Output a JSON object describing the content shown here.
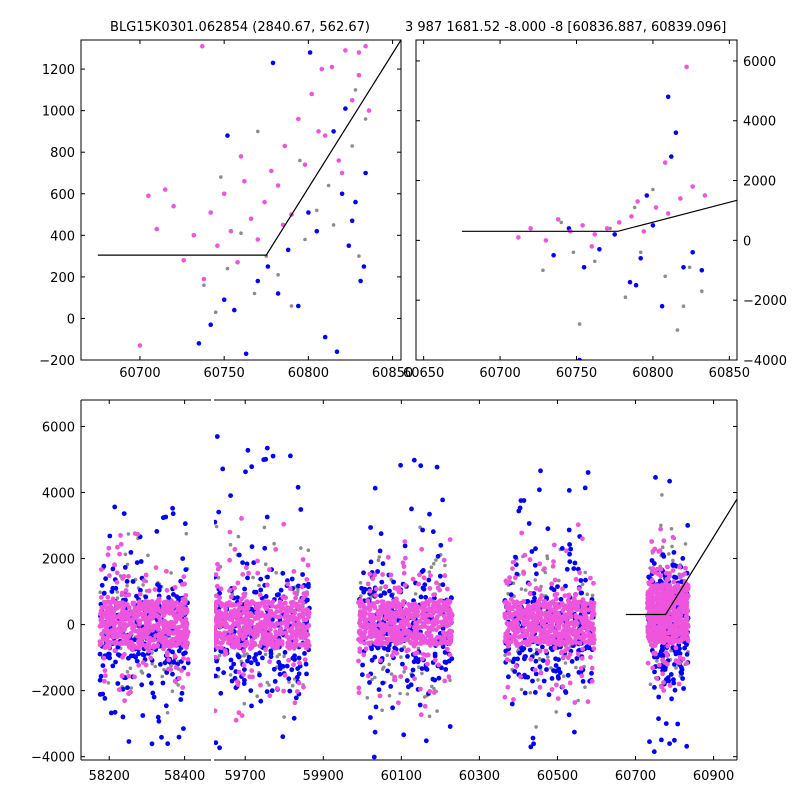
{
  "colors": {
    "series_gray": "#8c8c8c",
    "series_blue": "#0000ff",
    "series_pink": "#ee55dd",
    "model_line": "#000000",
    "frame": "#000000"
  },
  "chart_data": [
    {
      "type": "scatter",
      "title": "BLG15K0301.062854 (2840.67, 562.67)",
      "xlabel": "",
      "ylabel": "",
      "xlim": [
        60665,
        60855
      ],
      "ylim": [
        -200,
        1340
      ],
      "xticks": [
        60700,
        60750,
        60800,
        60850
      ],
      "xtick_labels": [
        "60700",
        "60750",
        "60800",
        "60850"
      ],
      "yticks": [
        -200,
        0,
        200,
        400,
        600,
        800,
        1000,
        1200
      ],
      "ytick_labels": [
        "−200",
        "0",
        "200",
        "400",
        "600",
        "800",
        "1000",
        "1200"
      ],
      "ytick_side": "left",
      "grid": false,
      "model_line": {
        "x": [
          60675,
          60775,
          60855
        ],
        "y": [
          305,
          305,
          1340
        ]
      },
      "series": [
        {
          "color": "gray",
          "x": [
            60738,
            60745,
            60752,
            60760,
            60768,
            60775,
            60782,
            60790,
            60798,
            60805,
            60812,
            60820,
            60826,
            60830,
            60834,
            60748,
            60770,
            60795,
            60815,
            60828
          ],
          "y": [
            160,
            30,
            240,
            410,
            120,
            300,
            210,
            60,
            380,
            520,
            640,
            700,
            830,
            300,
            960,
            680,
            900,
            760,
            450,
            1100
          ]
        },
        {
          "color": "blue",
          "x": [
            60735,
            60742,
            60750,
            60756,
            60763,
            60770,
            60776,
            60782,
            60788,
            60794,
            60800,
            60805,
            60810,
            60815,
            60820,
            60824,
            60828,
            60831,
            60834,
            60752,
            60779,
            60801,
            60817,
            60822,
            60826,
            60833
          ],
          "y": [
            -120,
            -30,
            90,
            40,
            -170,
            180,
            250,
            120,
            330,
            60,
            510,
            420,
            -90,
            900,
            600,
            350,
            560,
            180,
            700,
            880,
            1230,
            1280,
            -160,
            1010,
            470,
            250
          ]
        },
        {
          "color": "pink",
          "x": [
            60700,
            60705,
            60710,
            60715,
            60720,
            60726,
            60732,
            60738,
            60742,
            60746,
            60750,
            60754,
            60758,
            60762,
            60766,
            60770,
            60774,
            60778,
            60782,
            60786,
            60790,
            60794,
            60798,
            60802,
            60806,
            60810,
            60814,
            60818,
            60822,
            60826,
            60830,
            60834,
            60836,
            60737,
            60760,
            60785,
            60808,
            60820,
            60830
          ],
          "y": [
            -130,
            590,
            430,
            620,
            540,
            280,
            400,
            190,
            510,
            350,
            600,
            420,
            270,
            660,
            480,
            380,
            560,
            710,
            640,
            830,
            500,
            960,
            740,
            1080,
            900,
            880,
            1210,
            760,
            1290,
            1050,
            1170,
            1310,
            1000,
            1310,
            780,
            450,
            1200,
            700,
            1280
          ]
        }
      ]
    },
    {
      "type": "scatter",
      "title": "3 987 1681.52 -8.000 -8 [60836.887, 60839.096]",
      "xlabel": "",
      "ylabel": "",
      "xlim": [
        60645,
        60855
      ],
      "ylim": [
        -4000,
        6700
      ],
      "xticks": [
        60650,
        60700,
        60750,
        60800,
        60850
      ],
      "xtick_labels": [
        "60650",
        "60700",
        "60750",
        "60800",
        "60850"
      ],
      "yticks": [
        -4000,
        -2000,
        0,
        2000,
        4000,
        6000
      ],
      "ytick_labels": [
        "−4000",
        "−2000",
        "0",
        "2000",
        "4000",
        "6000"
      ],
      "ytick_side": "right",
      "grid": false,
      "model_line": {
        "x": [
          60675,
          60777,
          60855
        ],
        "y": [
          305,
          305,
          1340
        ]
      },
      "series": [
        {
          "color": "gray",
          "x": [
            60728,
            60740,
            60752,
            60762,
            60772,
            60782,
            60792,
            60800,
            60808,
            60816,
            60824,
            60832,
            60748,
            60788,
            60820
          ],
          "y": [
            -1000,
            600,
            -2800,
            -700,
            400,
            -1900,
            -400,
            1700,
            -1200,
            -3000,
            -900,
            -1700,
            -400,
            1100,
            -2200
          ]
        },
        {
          "color": "blue",
          "x": [
            60735,
            60745,
            60755,
            60765,
            60775,
            60785,
            60792,
            60800,
            60806,
            60810,
            60815,
            60820,
            60826,
            60832,
            60752,
            60796,
            60812,
            60789
          ],
          "y": [
            -500,
            400,
            -900,
            -300,
            200,
            -1400,
            -600,
            500,
            -2200,
            4800,
            3600,
            -900,
            -400,
            -1000,
            -4000,
            1500,
            2800,
            -1500
          ]
        },
        {
          "color": "pink",
          "x": [
            60712,
            60720,
            60730,
            60738,
            60746,
            60754,
            60762,
            60770,
            60778,
            60786,
            60794,
            60802,
            60810,
            60818,
            60826,
            60834,
            60760,
            60790,
            60822,
            60808
          ],
          "y": [
            100,
            400,
            0,
            700,
            300,
            500,
            200,
            400,
            600,
            800,
            300,
            1100,
            900,
            1400,
            1800,
            1500,
            -200,
            1300,
            5800,
            2600
          ]
        }
      ]
    },
    {
      "type": "scatter",
      "title": "",
      "xlabel": "",
      "ylabel": "",
      "ylim": [
        -4100,
        6800
      ],
      "yticks": [
        -4000,
        -2000,
        0,
        2000,
        4000,
        6000
      ],
      "ytick_labels": [
        "−4000",
        "−2000",
        "0",
        "2000",
        "4000",
        "6000"
      ],
      "ytick_side": "left",
      "grid": false,
      "x_segments": [
        {
          "xlim": [
            58125,
            58470
          ],
          "xticks": [
            58200,
            58400
          ],
          "xtick_labels": [
            "58200",
            "58400"
          ]
        },
        {
          "xlim": [
            59620,
            60960
          ],
          "xticks": [
            59700,
            59900,
            60100,
            60300,
            60500,
            60700,
            60900
          ],
          "xtick_labels": [
            "59700",
            "59900",
            "60100",
            "60300",
            "60500",
            "60700",
            "60900"
          ]
        }
      ],
      "clusters": [
        {
          "x_range": [
            58175,
            58410
          ],
          "pink_band": [
            -700,
            700
          ],
          "gray_spread": [
            -3900,
            3700
          ],
          "blue_spread": [
            -3700,
            3600
          ],
          "pink_spread": [
            -3600,
            3100
          ]
        },
        {
          "x_range": [
            59620,
            59865
          ],
          "pink_band": [
            -700,
            700
          ],
          "gray_spread": [
            -3900,
            5700
          ],
          "blue_spread": [
            -4000,
            5700
          ],
          "pink_spread": [
            -3300,
            4400
          ]
        },
        {
          "x_range": [
            59990,
            60230
          ],
          "pink_band": [
            -600,
            700
          ],
          "gray_spread": [
            -3700,
            6800
          ],
          "blue_spread": [
            -4100,
            5000
          ],
          "pink_spread": [
            -3800,
            6800
          ]
        },
        {
          "x_range": [
            60365,
            60595
          ],
          "pink_band": [
            -600,
            700
          ],
          "gray_spread": [
            -3900,
            6700
          ],
          "blue_spread": [
            -3800,
            5200
          ],
          "pink_spread": [
            -3900,
            6300
          ]
        },
        {
          "x_range": [
            60730,
            60835
          ],
          "pink_band": [
            -500,
            1200
          ],
          "gray_spread": [
            -2600,
            6000
          ],
          "blue_spread": [
            -4000,
            4800
          ],
          "pink_spread": [
            -2300,
            6300
          ]
        }
      ],
      "model_line": {
        "x": [
          60675,
          60777,
          60960
        ],
        "y": [
          305,
          305,
          3800
        ]
      }
    }
  ]
}
